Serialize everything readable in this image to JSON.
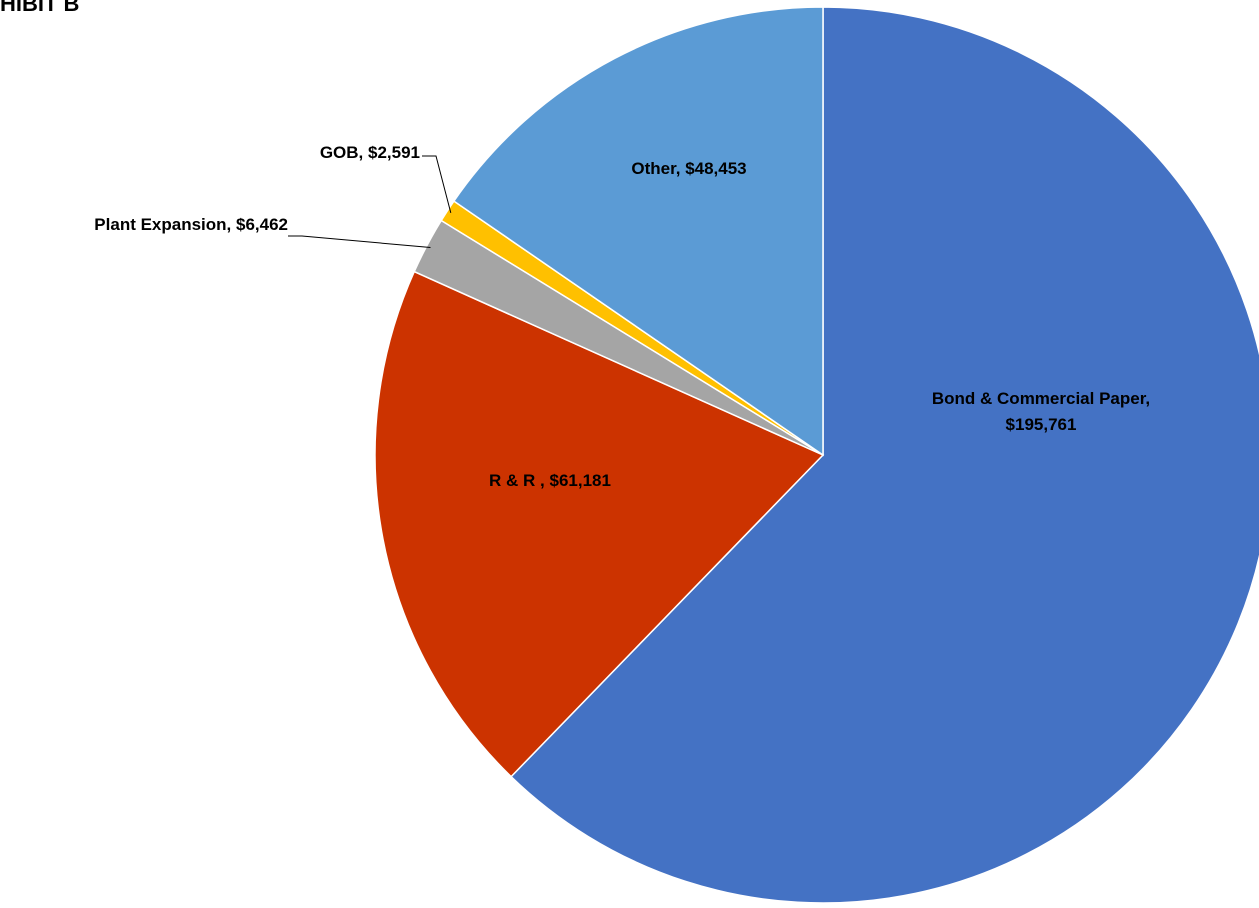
{
  "heading": "HIBIT B",
  "chart_data": {
    "type": "pie",
    "title": "",
    "start_angle_deg": 0,
    "direction": "clockwise",
    "slices": [
      {
        "name": "Bond & Commercial Paper",
        "value": 195761,
        "label_lines": [
          "Bond & Commercial Paper,",
          "$195,761"
        ],
        "color": "#4472C4",
        "label_placement": "inside",
        "leader_line": false
      },
      {
        "name": "R & R",
        "value": 61181,
        "label_lines": [
          "R & R , $61,181"
        ],
        "color": "#CC3300",
        "label_placement": "inside",
        "leader_line": false
      },
      {
        "name": "Plant Expansion",
        "value": 6462,
        "label_lines": [
          "Plant Expansion, $6,462"
        ],
        "color": "#A5A5A5",
        "label_placement": "outside-left",
        "leader_line": true
      },
      {
        "name": "GOB",
        "value": 2591,
        "label_lines": [
          "GOB, $2,591"
        ],
        "color": "#FFC000",
        "label_placement": "outside-left",
        "leader_line": true
      },
      {
        "name": "Other",
        "value": 48453,
        "label_lines": [
          "Other, $48,453"
        ],
        "color": "#5B9BD5",
        "label_placement": "inside",
        "leader_line": false
      }
    ]
  }
}
